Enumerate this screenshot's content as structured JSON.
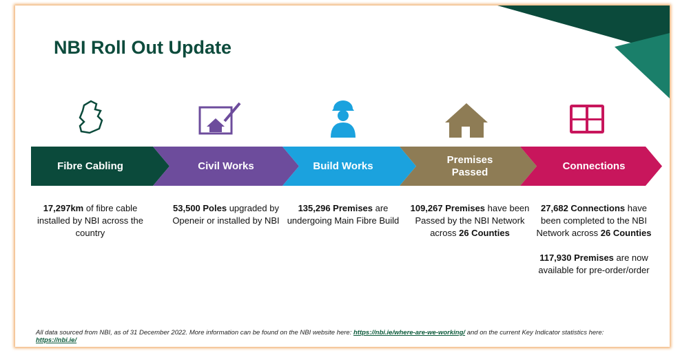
{
  "title": "NBI Roll Out Update",
  "stages": [
    {
      "label": "Fibre Cabling",
      "color": "#0b4a3b",
      "description": [
        [
          {
            "text": "17,297km",
            "bold": true
          },
          {
            "text": " of fibre cable installed by NBI across the country",
            "bold": false
          }
        ]
      ]
    },
    {
      "label": "Civil Works",
      "color": "#6d4c9c",
      "description": [
        [
          {
            "text": "53,500 Poles",
            "bold": true
          },
          {
            "text": " upgraded by Openeir or installed by NBI",
            "bold": false
          }
        ]
      ]
    },
    {
      "label": "Build Works",
      "color": "#1ba2de",
      "description": [
        [
          {
            "text": "135,296 Premises",
            "bold": true
          },
          {
            "text": " are undergoing Main Fibre Build",
            "bold": false
          }
        ]
      ]
    },
    {
      "label": "Premises Passed",
      "color": "#8e7c55",
      "description": [
        [
          {
            "text": "109,267 Premises",
            "bold": true
          },
          {
            "text": " have been Passed by the NBI Network across ",
            "bold": false
          },
          {
            "text": "26 Counties",
            "bold": true
          }
        ]
      ]
    },
    {
      "label": "Connections",
      "color": "#c8165c",
      "description": [
        [
          {
            "text": "27,682 Connections",
            "bold": true
          },
          {
            "text": " have been completed to the NBI Network across ",
            "bold": false
          },
          {
            "text": "26 Counties",
            "bold": true
          }
        ],
        [
          {
            "text": "117,930 Premises",
            "bold": true
          },
          {
            "text": " are now available for pre-order/order",
            "bold": false
          }
        ]
      ]
    }
  ],
  "footer": {
    "parts": [
      {
        "text": "All data sourced from NBI, as of 31 December 2022. More information can be found on the NBI website here: ",
        "link": false
      },
      {
        "text": "https://nbi.ie/where-are-we-working/",
        "link": true
      },
      {
        "text": " and on the current Key Indicator statistics here: ",
        "link": false
      },
      {
        "text": "https://nbi.ie/",
        "link": true
      }
    ]
  }
}
